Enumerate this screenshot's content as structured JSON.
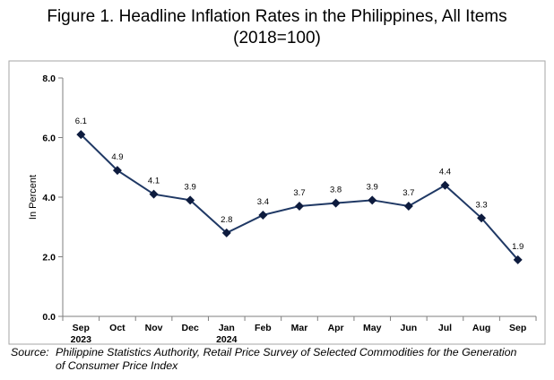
{
  "title_line1": "Figure 1. Headline Inflation Rates in the Philippines, All Items",
  "title_line2": "(2018=100)",
  "chart_data": {
    "type": "line",
    "title": "Figure 1. Headline Inflation Rates in the Philippines, All Items (2018=100)",
    "xlabel": "",
    "ylabel": "In Percent",
    "ylim": [
      0,
      8
    ],
    "yticks": [
      "0.0",
      "2.0",
      "4.0",
      "6.0",
      "8.0"
    ],
    "categories": [
      "Sep",
      "Oct",
      "Nov",
      "Dec",
      "Jan",
      "Feb",
      "Mar",
      "Apr",
      "May",
      "Jun",
      "Jul",
      "Aug",
      "Sep"
    ],
    "year_labels": [
      "2023",
      "",
      "",
      "",
      "2024",
      "",
      "",
      "",
      "",
      "",
      "",
      "",
      ""
    ],
    "series": [
      {
        "name": "Headline Inflation",
        "color": "#1f3864",
        "values": [
          6.1,
          4.9,
          4.1,
          3.9,
          2.8,
          3.4,
          3.7,
          3.8,
          3.9,
          3.7,
          4.4,
          3.3,
          1.9
        ],
        "labels": [
          "6.1",
          "4.9",
          "4.1",
          "3.9",
          "2.8",
          "3.4",
          "3.7",
          "3.8",
          "3.9",
          "3.7",
          "4.4",
          "3.3",
          "1.9"
        ]
      }
    ]
  },
  "source": {
    "prefix": "Source:",
    "line1": "Philippine Statistics Authority, Retail Price Survey of Selected Commodities for the Generation",
    "line2": "of Consumer Price Index"
  }
}
